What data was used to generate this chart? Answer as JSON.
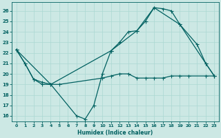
{
  "xlabel": "Humidex (Indice chaleur)",
  "bg_color": "#cce8e4",
  "grid_color": "#b0d8d4",
  "line_color": "#006060",
  "xlim": [
    -0.5,
    23.5
  ],
  "ylim": [
    15.5,
    26.8
  ],
  "yticks": [
    16,
    17,
    18,
    19,
    20,
    21,
    22,
    23,
    24,
    25,
    26
  ],
  "xticks": [
    0,
    1,
    2,
    3,
    4,
    5,
    6,
    7,
    8,
    9,
    10,
    11,
    12,
    13,
    14,
    15,
    16,
    17,
    18,
    19,
    20,
    21,
    22,
    23
  ],
  "line1_x": [
    0,
    1,
    2,
    3,
    4,
    7,
    8,
    9,
    10,
    11,
    12,
    13,
    14,
    15,
    16,
    17,
    18,
    19,
    21,
    22,
    23
  ],
  "line1_y": [
    22.3,
    21.0,
    19.5,
    19.0,
    19.0,
    16.0,
    15.7,
    17.0,
    20.0,
    22.2,
    23.0,
    24.0,
    24.1,
    25.0,
    26.3,
    26.2,
    26.0,
    24.7,
    22.8,
    21.0,
    19.8
  ],
  "line2_x": [
    0,
    1,
    2,
    3,
    4,
    5,
    10,
    11,
    12,
    13,
    14,
    15,
    16,
    17,
    18,
    19,
    20,
    22,
    23
  ],
  "line2_y": [
    22.3,
    21.0,
    19.5,
    19.2,
    19.0,
    19.0,
    19.6,
    19.8,
    20.0,
    20.0,
    19.6,
    19.6,
    19.6,
    19.6,
    19.8,
    19.8,
    19.8,
    19.8,
    19.8
  ],
  "line3_x": [
    0,
    4,
    11,
    14,
    16,
    19,
    22,
    23
  ],
  "line3_y": [
    22.3,
    19.0,
    22.2,
    24.1,
    26.3,
    24.7,
    21.0,
    19.8
  ]
}
